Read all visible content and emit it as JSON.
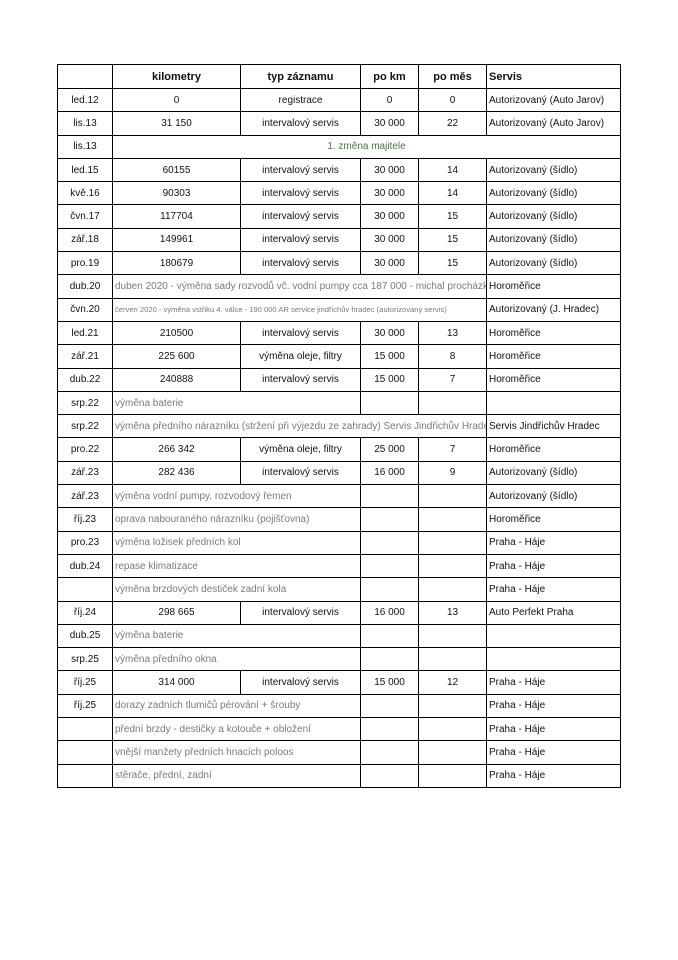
{
  "header": [
    "",
    "kilometry",
    "typ záznamu",
    "po km",
    "po měs",
    "Servis"
  ],
  "colors": {
    "note_text": "#7a7a7a",
    "owner_change_text": "#3d7a3d"
  },
  "rows": [
    {
      "kind": "entry",
      "date": "led.12",
      "km": "0",
      "type": "registrace",
      "po_km": "0",
      "po_mes": "0",
      "servis": "Autorizovaný (Auto Jarov)"
    },
    {
      "kind": "entry",
      "date": "lis.13",
      "km": "31 150",
      "type": "intervalový servis",
      "po_km": "30 000",
      "po_mes": "22",
      "servis": "Autorizovaný (Auto Jarov)"
    },
    {
      "kind": "owner",
      "date": "lis.13",
      "note": "1. změna majitele"
    },
    {
      "kind": "entry",
      "date": "led.15",
      "km": "60155",
      "type": "intervalový servis",
      "po_km": "30 000",
      "po_mes": "14",
      "servis": "Autorizovaný (šídlo)"
    },
    {
      "kind": "entry",
      "date": "kvě.16",
      "km": "90303",
      "type": "intervalový servis",
      "po_km": "30 000",
      "po_mes": "14",
      "servis": "Autorizovaný (šídlo)"
    },
    {
      "kind": "entry",
      "date": "čvn.17",
      "km": "117704",
      "type": "intervalový servis",
      "po_km": "30 000",
      "po_mes": "15",
      "servis": "Autorizovaný (šídlo)"
    },
    {
      "kind": "entry",
      "date": "zář.18",
      "km": "149961",
      "type": "intervalový servis",
      "po_km": "30 000",
      "po_mes": "15",
      "servis": "Autorizovaný (šídlo)"
    },
    {
      "kind": "entry",
      "date": "pro.19",
      "km": "180679",
      "type": "intervalový servis",
      "po_km": "30 000",
      "po_mes": "15",
      "servis": "Autorizovaný (šídlo)"
    },
    {
      "kind": "wide",
      "date": "dub.20",
      "note": "duben 2020 - výměna sady rozvodů vč. vodní pumpy cca 187 000 - michal procházka",
      "servis": "Horoměřice"
    },
    {
      "kind": "wide",
      "small": true,
      "date": "čvn.20",
      "note": "červen 2020 - výměna vstřiku 4. válce - 190 000 AR service jindřichův hradec (autorizovaný servis)",
      "servis": "Autorizovaný (J. Hradec)"
    },
    {
      "kind": "entry",
      "date": "led.21",
      "km": "210500",
      "type": "intervalový servis",
      "po_km": "30 000",
      "po_mes": "13",
      "servis": "Horoměřice"
    },
    {
      "kind": "entry",
      "date": "zář.21",
      "km": "225 600",
      "type": "výměna oleje, filtry",
      "po_km": "15 000",
      "po_mes": "8",
      "servis": "Horoměřice"
    },
    {
      "kind": "entry",
      "date": "dub.22",
      "km": "240888",
      "type": "intervalový servis",
      "po_km": "15 000",
      "po_mes": "7",
      "servis": "Horoměřice"
    },
    {
      "kind": "note",
      "date": "srp.22",
      "note": "výměna baterie",
      "servis": ""
    },
    {
      "kind": "wide",
      "date": "srp.22",
      "note": "výměna předního nárazníku (stržení při výjezdu ze zahrady) Servis Jindřichův Hradec",
      "servis": "Servis Jindřichův Hradec"
    },
    {
      "kind": "entry",
      "date": "pro.22",
      "km": "266 342",
      "type": "výměna oleje, filtry",
      "po_km": "25 000",
      "po_mes": "7",
      "servis": "Horoměřice"
    },
    {
      "kind": "entry",
      "date": "zář.23",
      "km": "282 436",
      "type": "intervalový servis",
      "po_km": "16 000",
      "po_mes": "9",
      "servis": "Autorizovaný (šídlo)"
    },
    {
      "kind": "note",
      "date": "zář.23",
      "note": "výměna vodní pumpy, rozvodový řemen",
      "servis": "Autorizovaný (šídlo)"
    },
    {
      "kind": "note",
      "date": "říj.23",
      "note": "oprava nabouraného nárazníku (pojišťovna)",
      "servis": "Horoměřice"
    },
    {
      "kind": "note",
      "date": "pro.23",
      "note": "výměna ložisek předních kol",
      "servis": " Praha - Háje"
    },
    {
      "kind": "note",
      "date": "dub.24",
      "note": "repase klimatizace",
      "servis": "Praha - Háje"
    },
    {
      "kind": "note",
      "date": "",
      "note": "výměna brzdových destiček zadní kola",
      "servis": "Praha - Háje"
    },
    {
      "kind": "entry",
      "date": "říj.24",
      "km": "298 665",
      "type": "intervalový servis",
      "po_km": "16 000",
      "po_mes": "13",
      "servis": "Auto Perfekt Praha"
    },
    {
      "kind": "note",
      "date": "dub.25",
      "note": "výměna baterie",
      "servis": ""
    },
    {
      "kind": "note",
      "date": "srp.25",
      "note": "výměna předního okna",
      "servis": ""
    },
    {
      "kind": "entry",
      "date": "říj.25",
      "km": "314 000",
      "type": "intervalový servis",
      "po_km": "15 000",
      "po_mes": "12",
      "servis": "Praha - Háje"
    },
    {
      "kind": "note",
      "date": "říj.25",
      "note": "dorazy zadních tlumičů pérování + šrouby",
      "servis": "Praha - Háje"
    },
    {
      "kind": "note",
      "date": "",
      "note": "přední brzdy - destičky a kotouče + obložení",
      "servis": "Praha - Háje"
    },
    {
      "kind": "note",
      "date": "",
      "note": "vnější manžety předních hnacích poloos",
      "servis": "Praha - Háje"
    },
    {
      "kind": "note",
      "date": "",
      "note": "stěrače, přední, zadní",
      "servis": "Praha - Háje"
    }
  ]
}
